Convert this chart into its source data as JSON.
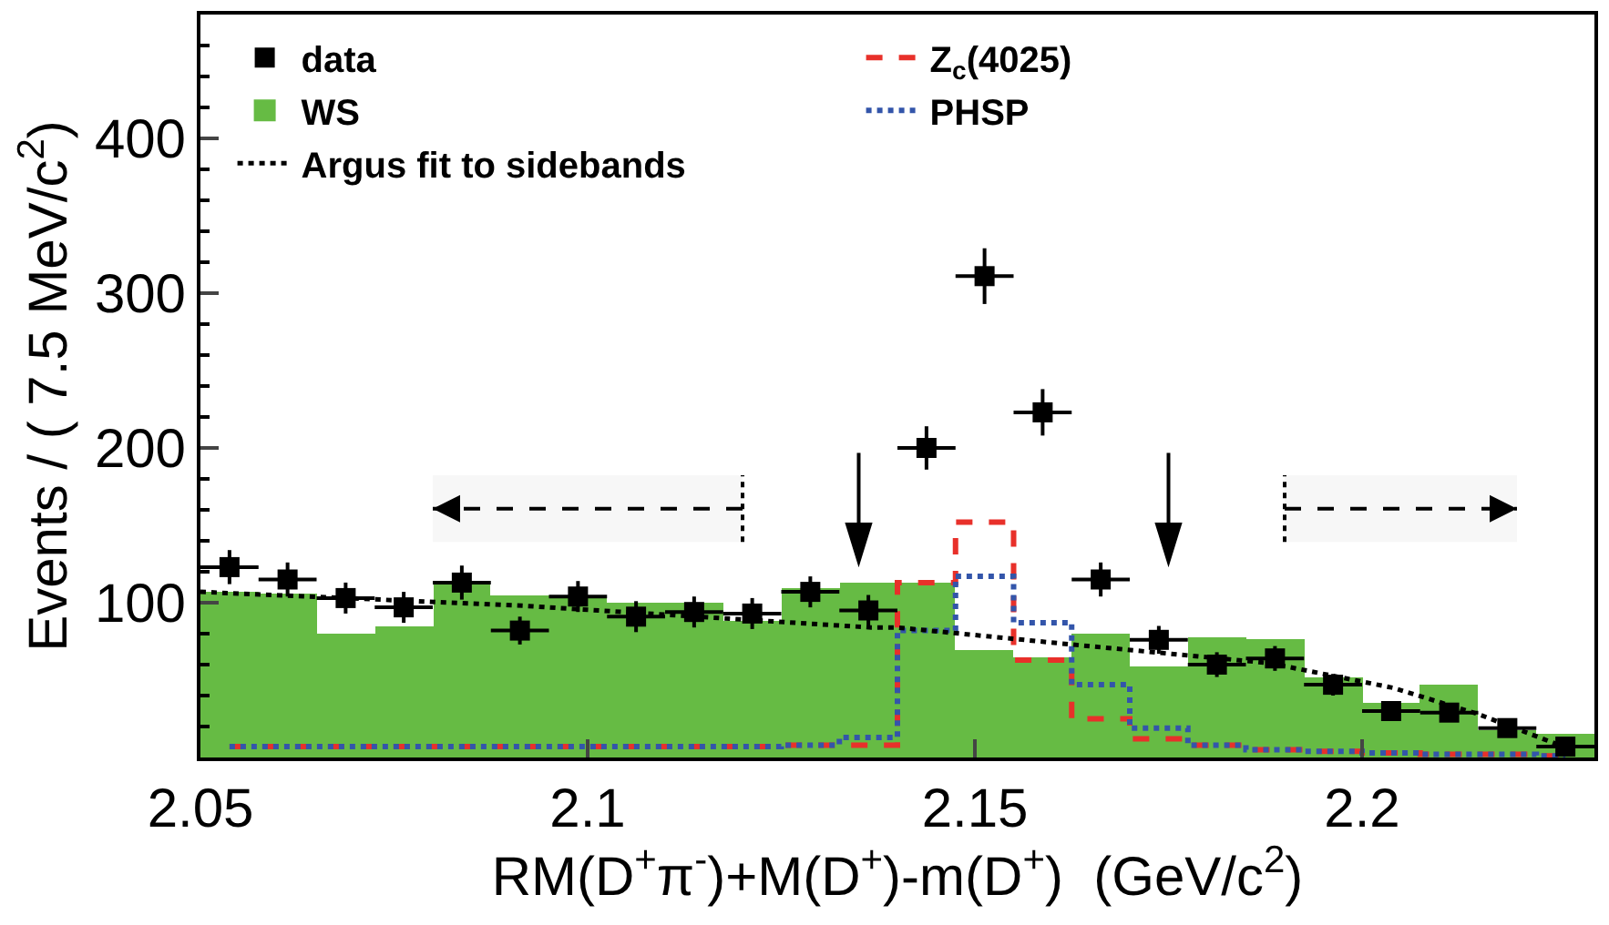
{
  "chart_data": {
    "type": "histogram",
    "xlabel": "RM(D$^{+}$π$^{-}$)+M(D$^{+}$)-m(D$^{+}$)  (GeV/c$^{2}$)",
    "ylabel": "Events / ( 7.5 MeV/c$^{2}$)",
    "bins": [
      2.05,
      2.0575,
      2.065,
      2.0725,
      2.08,
      2.0875,
      2.095,
      2.1025,
      2.11,
      2.1175,
      2.125,
      2.1325,
      2.14,
      2.1475,
      2.155,
      2.1625,
      2.17,
      2.1775,
      2.185,
      2.1925,
      2.2,
      2.2075,
      2.215,
      2.2225,
      2.23
    ],
    "series": [
      {
        "name": "data",
        "type": "scatter",
        "color": "#000000",
        "marker": "square",
        "x": [
          2.05375,
          2.06125,
          2.06875,
          2.07625,
          2.08375,
          2.09125,
          2.09875,
          2.10625,
          2.11375,
          2.12125,
          2.12875,
          2.13625,
          2.14375,
          2.15125,
          2.15875,
          2.16625,
          2.17375,
          2.18125,
          2.18875,
          2.19625,
          2.20375,
          2.21125,
          2.21875,
          2.22625
        ],
        "values": [
          123,
          115,
          103,
          97,
          113,
          82,
          104,
          91,
          94,
          93,
          107,
          95,
          200,
          311,
          223,
          115,
          76,
          60,
          64,
          47,
          30,
          29,
          19,
          7
        ],
        "errors": [
          11,
          11,
          10,
          10,
          11,
          9,
          10,
          10,
          10,
          10,
          10,
          10,
          14,
          18,
          15,
          11,
          9,
          8,
          8,
          7,
          5,
          5,
          4,
          3
        ],
        "xerrors": [
          0.00375,
          0.00375,
          0.00375,
          0.00375,
          0.00375,
          0.00375,
          0.00375,
          0.00375,
          0.00375,
          0.00375,
          0.00375,
          0.00375,
          0.00375,
          0.00375,
          0.00375,
          0.00375,
          0.00375,
          0.00375,
          0.00375,
          0.00375,
          0.00375,
          0.00375,
          0.00375,
          0.00375
        ]
      },
      {
        "name": "Z$_{c}$(4025)",
        "type": "step",
        "color": "#e8302a",
        "line_style": "dashed",
        "x": [
          2.05375,
          2.06125,
          2.06875,
          2.07625,
          2.08375,
          2.09125,
          2.09875,
          2.10625,
          2.11375,
          2.12125,
          2.12875,
          2.13625,
          2.14375,
          2.15125,
          2.15875,
          2.16625,
          2.17375,
          2.18125,
          2.18875,
          2.19625,
          2.20375,
          2.21125,
          2.21875,
          2.22625
        ],
        "values": [
          7,
          7,
          7,
          7,
          7,
          7,
          7,
          7,
          7,
          7,
          8,
          8,
          113,
          152,
          63,
          25,
          12,
          8,
          5,
          4,
          3,
          2,
          2,
          1
        ]
      },
      {
        "name": "WS",
        "type": "histogram",
        "color": "#66bb44",
        "values": [
          107,
          106,
          80,
          85,
          113,
          105,
          105,
          100,
          100,
          88,
          109,
          113,
          113,
          69,
          65,
          80,
          59,
          78,
          76,
          52,
          35,
          47,
          18,
          15
        ]
      },
      {
        "name": "PHSP",
        "type": "step",
        "color": "#3355aa",
        "line_style": "dotted",
        "x": [
          2.05375,
          2.06125,
          2.06875,
          2.07625,
          2.08375,
          2.09125,
          2.09875,
          2.10625,
          2.11375,
          2.12125,
          2.12875,
          2.13625,
          2.14375,
          2.15125,
          2.15875,
          2.16625,
          2.17375,
          2.18125,
          2.18875,
          2.19625,
          2.20375,
          2.21125,
          2.21875,
          2.22625
        ],
        "values": [
          7,
          7,
          7,
          7,
          7,
          7,
          7,
          7,
          7,
          7,
          8,
          13,
          82,
          117,
          87,
          47,
          19,
          8,
          5,
          4,
          3,
          2,
          2,
          1
        ]
      },
      {
        "name": "Argus fit to sidebands",
        "type": "line",
        "color": "#000000",
        "line_style": "dotted",
        "x": [
          2.05,
          2.0918,
          2.1366,
          2.14,
          2.1625,
          2.188,
          2.204,
          2.215,
          2.226
        ],
        "values": [
          107,
          98,
          84,
          84,
          73,
          61,
          45,
          28,
          7
        ]
      }
    ],
    "ref_lines": [
      {
        "axis": "x",
        "value": 2.135,
        "line_style": "solid",
        "color": "#000000"
      },
      {
        "axis": "x",
        "value": 2.175,
        "line_style": "solid",
        "color": "#000000"
      },
      {
        "axis": "x",
        "value": 2.12,
        "line_style": "dotted",
        "color": "#000000"
      },
      {
        "axis": "x",
        "value": 2.19,
        "line_style": "dotted",
        "color": "#000000"
      }
    ],
    "bands": [
      {
        "axis": "x",
        "from": 2.08,
        "to": 2.12,
        "color": "#000000"
      },
      {
        "axis": "x",
        "from": 2.19,
        "to": 2.22,
        "color": "#000000"
      }
    ],
    "xlim": [
      2.05,
      2.23
    ],
    "ylim": [
      0,
      480
    ],
    "xticks": [
      2.05,
      2.1,
      2.15,
      2.2
    ],
    "yticks": [
      100,
      200,
      300,
      400
    ],
    "grid": false,
    "legend": "top"
  }
}
